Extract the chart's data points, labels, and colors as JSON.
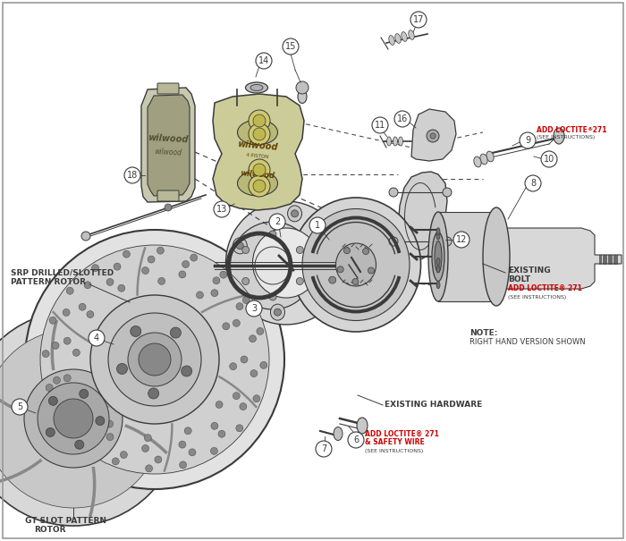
{
  "bg_color": "#ffffff",
  "line_color": "#3a3a3a",
  "red_color": "#cc0000",
  "gray_fill": "#d4d4d4",
  "dark_gray": "#888888",
  "mid_gray": "#bbbbbb",
  "light_gray": "#e8e8e8",
  "labels": {
    "srp": "SRP DRILLED/SLOTTED\nPATTERN ROTOR",
    "gt": "GT SLOT PATTERN\nROTOR",
    "existing_hardware": "EXISTING HARDWARE",
    "existing_bolt": "EXISTING\nBOLT",
    "note": "NOTE:\nRIGHT HAND VERSION SHOWN",
    "loctite_6_line1": "ADD LOCTITE",
    "loctite_6_sup": "®",
    "loctite_6_line2": " 271",
    "loctite_6_line3": "& SAFETY WIRE",
    "loctite_6_line4": "(SEE INSTRUCTIONS)",
    "loctite_9_line1": "ADD LOCTITE",
    "loctite_9_sup": "®",
    "loctite_9_line2": " 271",
    "loctite_9_line3": "(SEE INSTRUCTIONS)",
    "loctite_bolt_line1": "ADD LOCTITE",
    "loctite_bolt_sup": "®",
    "loctite_bolt_line2": " 271",
    "loctite_bolt_line3": "(SEE INSTRUCTIONS)"
  }
}
